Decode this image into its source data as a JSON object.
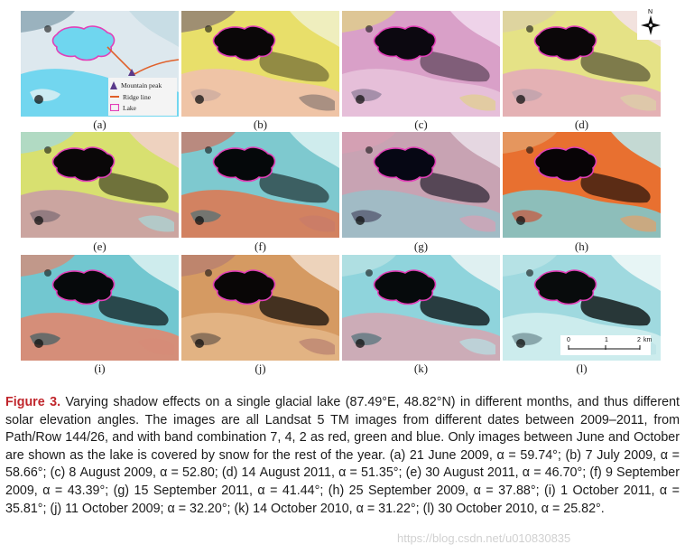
{
  "panels": [
    {
      "label": "(a)",
      "palette": "snow"
    },
    {
      "label": "(b)",
      "palette": "yellow"
    },
    {
      "label": "(c)",
      "palette": "pink"
    },
    {
      "label": "(d)",
      "palette": "yellowpink"
    },
    {
      "label": "(e)",
      "palette": "yellowlime"
    },
    {
      "label": "(f)",
      "palette": "orangecyan"
    },
    {
      "label": "(g)",
      "palette": "pinkpurple"
    },
    {
      "label": "(h)",
      "palette": "orange"
    },
    {
      "label": "(i)",
      "palette": "cyanorange"
    },
    {
      "label": "(j)",
      "palette": "tan"
    },
    {
      "label": "(k)",
      "palette": "cyan"
    },
    {
      "label": "(l)",
      "palette": "lightcyan"
    }
  ],
  "legend": {
    "peak_label": "Mountain peak",
    "ridge_label": "Ridge line",
    "lake_label": "Lake"
  },
  "north_label": "N",
  "scale": {
    "t0": "0",
    "t1": "1",
    "t2": "2",
    "unit": "km"
  },
  "colors": {
    "lake_outline": "#e23fb8",
    "ridge": "#e0602a",
    "peak": "#5a3a8a",
    "figure_label": "#c0262c"
  },
  "caption": {
    "figure_label": "Figure 3.",
    "text": " Varying shadow effects on a single glacial lake (87.49°E, 48.82°N) in different months, and thus different solar elevation angles. The images are all Landsat 5 TM images from different dates between 2009–2011, from Path/Row 144/26, and with band combination 7, 4, 2 as red, green and blue. Only images between June and October are shown as the lake is covered by snow for the rest of the year. (a) 21 June 2009, α = 59.74°; (b) 7 July 2009, α = 58.66°; (c) 8 August 2009, α = 52.80; (d) 14 August 2011, α = 51.35°; (e) 30 August 2011, α = 46.70°; (f) 9 September 2009, α = 43.39°; (g) 15 September 2011, α = 41.44°; (h) 25 September 2009, α = 37.88°; (i) 1 October 2011, α = 35.81°; (j) 11 October 2009; α = 32.20°; (k) 14 October 2010, α = 31.22°; (l) 30 October 2010, α = 25.82°.",
    "watermark": "https://blog.csdn.net/u010830835"
  }
}
